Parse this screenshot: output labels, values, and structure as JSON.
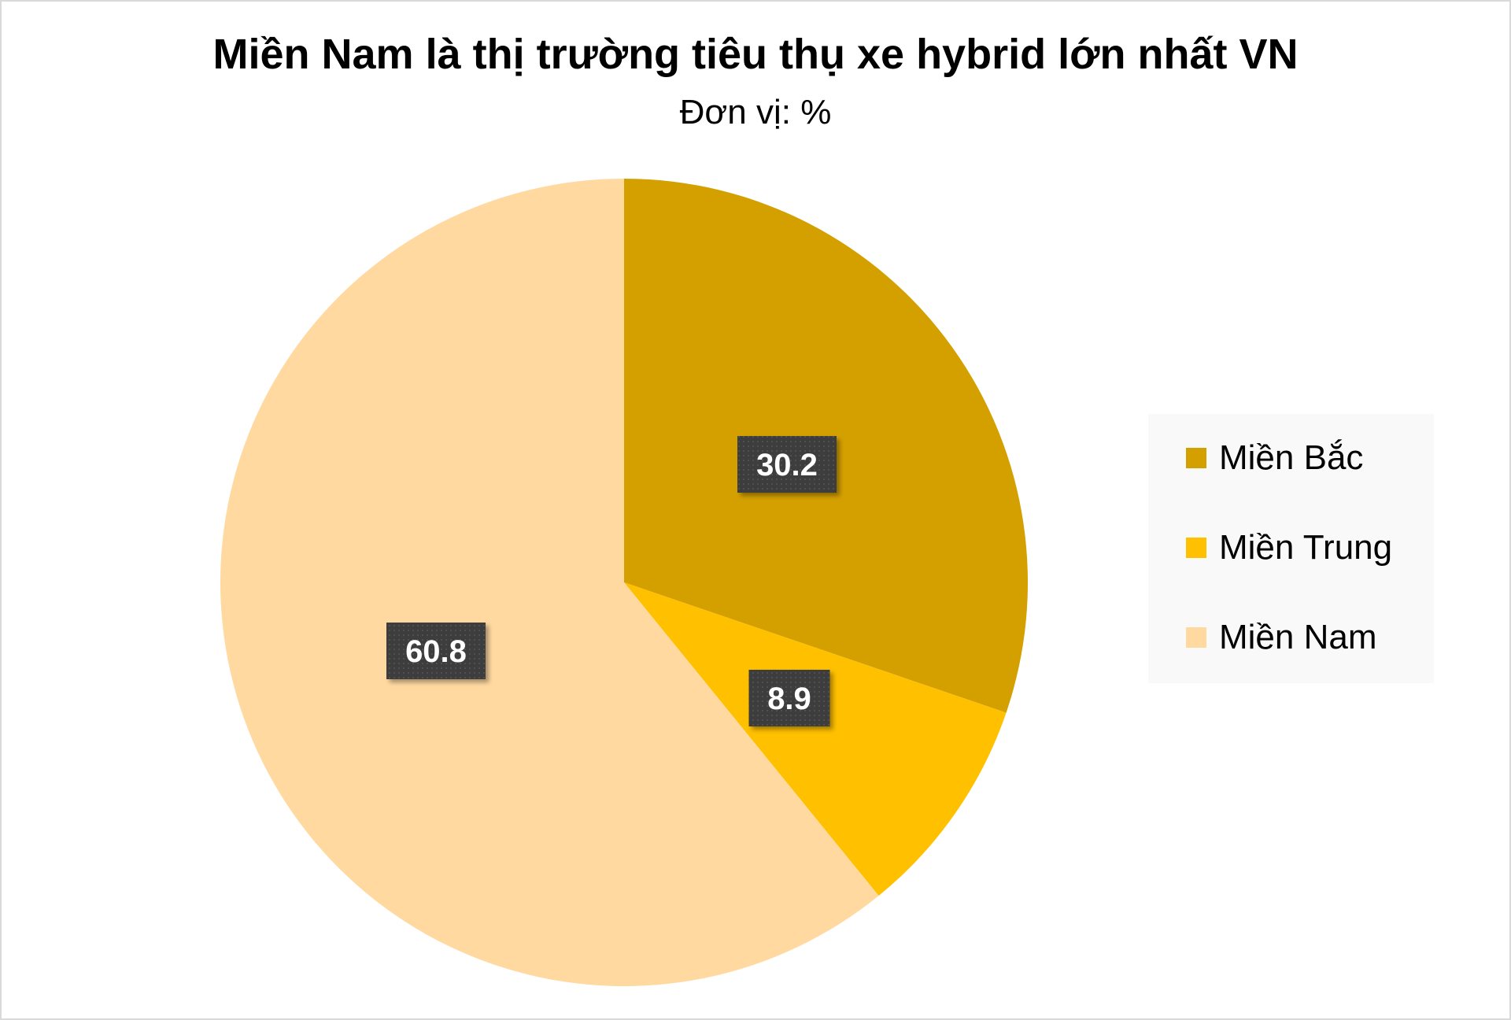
{
  "chart_data": {
    "type": "pie",
    "title": "Miền Nam là thị trường tiêu thụ xe hybrid lớn nhất VN",
    "subtitle": "Đơn vị: %",
    "categories": [
      "Miền Bắc",
      "Miền Trung",
      "Miền Nam"
    ],
    "values": [
      30.2,
      8.9,
      60.8
    ],
    "value_labels": [
      "30.2",
      "8.9",
      "60.8"
    ],
    "colors": [
      "#D4A000",
      "#FFC000",
      "#FFD9A0"
    ],
    "start_angle": "12 o'clock",
    "direction": "clockwise",
    "legend_position": "right",
    "data_label_style": "dark boxes with white bold text"
  }
}
